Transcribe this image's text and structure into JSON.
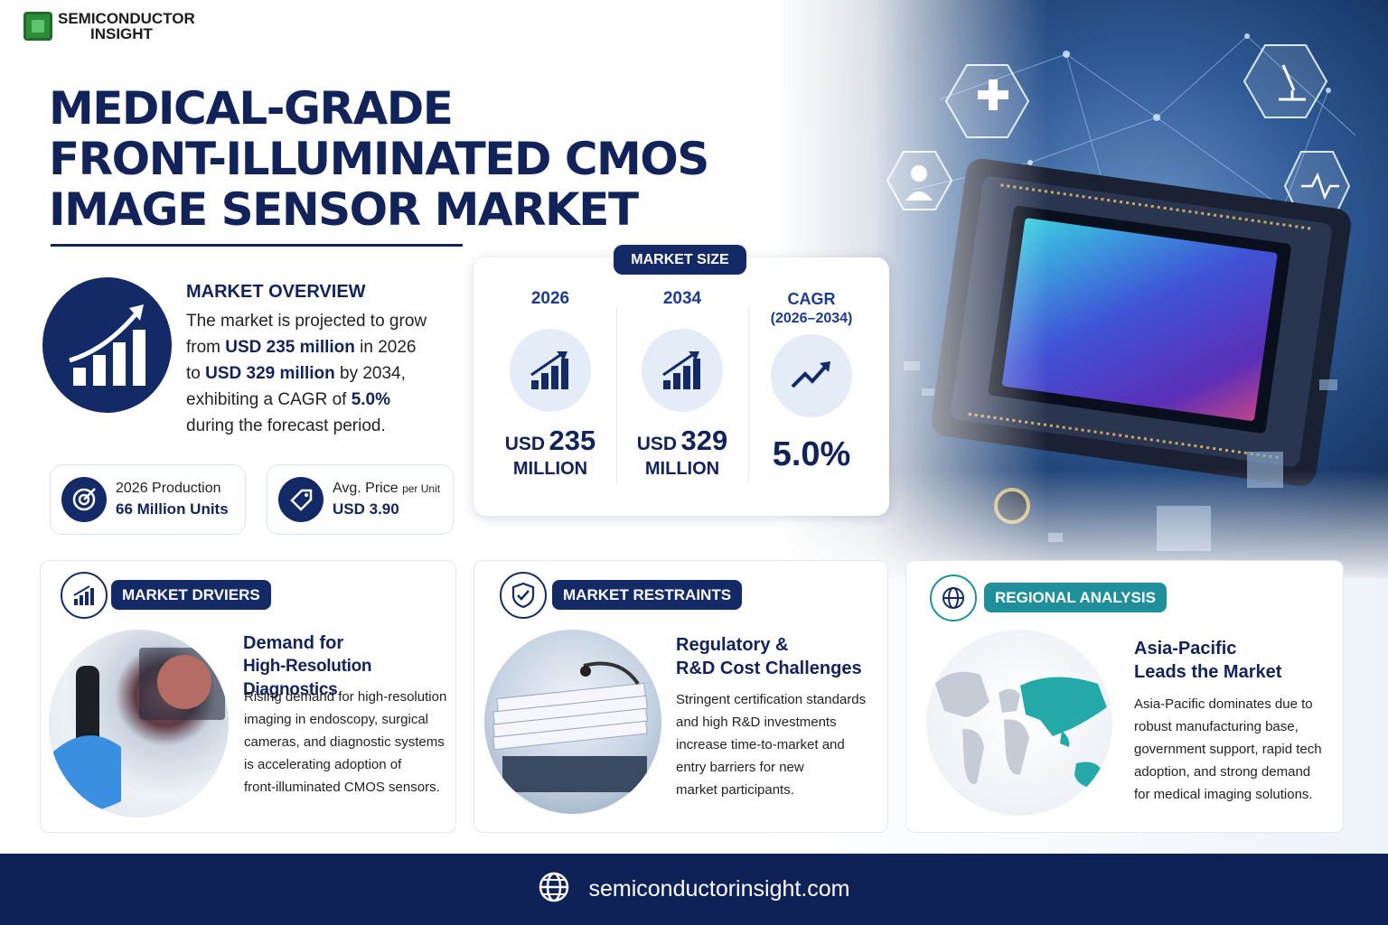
{
  "logo": {
    "line1": "SEMICONDUCTOR",
    "line2": "INSIGHT"
  },
  "title": {
    "line1": "MEDICAL-GRADE",
    "line2": "FRONT-ILLUMINATED CMOS",
    "line3": "IMAGE SENSOR MARKET"
  },
  "overview": {
    "heading": "MARKET OVERVIEW",
    "p1": "The market is projected to grow",
    "p2a": "from ",
    "p2b": "USD 235 million",
    "p2c": " in 2026",
    "p3a": "to ",
    "p3b": "USD 329 million",
    "p3c": " by 2034,",
    "p4a": "exhibiting a CAGR of ",
    "p4b": "5.0%",
    "p5": "during the forecast period."
  },
  "stats": [
    {
      "label": "2026 Production",
      "value": "66 Million Units",
      "icon": "target-icon"
    },
    {
      "label": "Avg. Price",
      "label_small": "per Unit",
      "value": "USD 3.90",
      "icon": "price-tag-icon"
    }
  ],
  "market_size": {
    "badge": "MARKET SIZE",
    "cols": [
      {
        "year": "2026",
        "prefix": "USD",
        "value": "235",
        "unit": "MILLION",
        "icon": "bar-chart-icon"
      },
      {
        "year": "2034",
        "prefix": "USD",
        "value": "329",
        "unit": "MILLION",
        "icon": "bar-chart-icon"
      },
      {
        "year": "CAGR",
        "year2": "(2026–2034)",
        "value": "5.0%",
        "icon": "trend-up-icon"
      }
    ]
  },
  "drivers": {
    "badge": "MARKET DRVIERS",
    "heading1": "Demand for",
    "heading2": "High-Resolution Diagnostics",
    "body": [
      "Rising demand for high-resolution",
      "imaging in endoscopy, surgical",
      "cameras, and diagnostic systems",
      "is accelerating adoption of",
      "front-illuminated CMOS sensors."
    ]
  },
  "restraints": {
    "badge": "MARKET RESTRAINTS",
    "heading1": "Regulatory &",
    "heading2": "R&D Cost Challenges",
    "body": [
      "Stringent certification standards",
      "and high R&D investments",
      "increase time-to-market and",
      "entry barriers for new",
      "market participants."
    ]
  },
  "regional": {
    "badge": "REGIONAL ANALYSIS",
    "heading1": "Asia-Pacific",
    "heading2": "Leads the Market",
    "body": [
      "Asia-Pacific dominates due to",
      "robust manufacturing base,",
      "government support, rapid tech",
      "adoption, and strong demand",
      "for medical imaging solutions."
    ]
  },
  "footer": {
    "url": "semiconductorinsight.com"
  },
  "colors": {
    "navy": "#12235a",
    "teal": "#1f8f9c",
    "accent_blue": "#1e3a8a"
  }
}
